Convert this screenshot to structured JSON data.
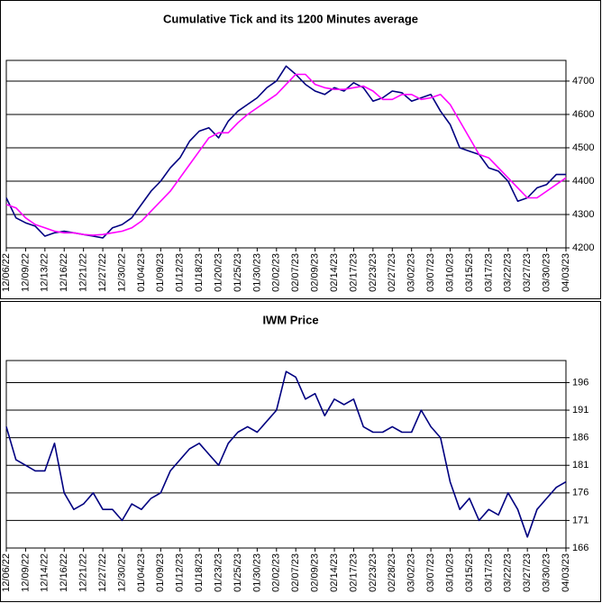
{
  "chart_data": [
    {
      "type": "line",
      "title": "Cumulative Tick and its 1200 Minutes average",
      "categories": [
        "12/06/22",
        null,
        "12/09/22",
        null,
        "12/13/22",
        null,
        "12/16/22",
        null,
        "12/21/22",
        null,
        "12/27/22",
        null,
        "12/30/22",
        null,
        "01/04/23",
        null,
        "01/09/23",
        null,
        "01/12/23",
        null,
        "01/18/23",
        null,
        "01/20/23",
        null,
        "01/25/23",
        null,
        "01/30/23",
        null,
        "02/02/23",
        null,
        "02/07/23",
        null,
        "02/09/23",
        null,
        "02/14/23",
        null,
        "02/17/23",
        null,
        "02/23/23",
        null,
        "02/27/23",
        null,
        "03/02/23",
        null,
        "03/07/23",
        null,
        "03/10/23",
        null,
        "03/15/23",
        null,
        "03/17/23",
        null,
        "03/22/23",
        null,
        "03/27/23",
        null,
        "03/30/23",
        null,
        "04/03/23"
      ],
      "series": [
        {
          "color": "#000080",
          "values": [
            4350,
            4290,
            4275,
            4265,
            4235,
            4245,
            4250,
            4245,
            4240,
            4235,
            4230,
            4260,
            4270,
            4290,
            4330,
            4370,
            4400,
            4440,
            4470,
            4520,
            4550,
            4560,
            4530,
            4580,
            4610,
            4630,
            4650,
            4680,
            4700,
            4745,
            4720,
            4690,
            4670,
            4660,
            4680,
            4670,
            4695,
            4680,
            4640,
            4650,
            4670,
            4665,
            4640,
            4650,
            4660,
            4610,
            4570,
            4500,
            4490,
            4480,
            4440,
            4430,
            4400,
            4340,
            4350,
            4380,
            4390,
            4420,
            4420
          ]
        },
        {
          "color": "#ff00ff",
          "values": [
            4330,
            4320,
            4290,
            4270,
            4260,
            4250,
            4245,
            4245,
            4240,
            4238,
            4240,
            4245,
            4250,
            4260,
            4280,
            4310,
            4340,
            4370,
            4410,
            4450,
            4490,
            4530,
            4545,
            4545,
            4575,
            4600,
            4620,
            4640,
            4660,
            4690,
            4720,
            4720,
            4690,
            4680,
            4675,
            4675,
            4680,
            4685,
            4670,
            4645,
            4645,
            4660,
            4660,
            4645,
            4650,
            4660,
            4630,
            4580,
            4530,
            4480,
            4470,
            4440,
            4410,
            4380,
            4350,
            4350,
            4370,
            4390,
            4410
          ]
        }
      ],
      "ylim": [
        4200,
        4762
      ],
      "yticks": [
        4200,
        4300,
        4400,
        4500,
        4600,
        4700
      ],
      "grid": true
    },
    {
      "type": "line",
      "title": "IWM Price",
      "categories": [
        "12/06/22",
        null,
        "12/09/22",
        null,
        "12/14/22",
        null,
        "12/16/22",
        null,
        "12/21/22",
        null,
        "12/27/22",
        null,
        "12/30/22",
        null,
        "01/04/23",
        null,
        "01/09/23",
        null,
        "01/12/23",
        null,
        "01/18/23",
        null,
        "01/23/23",
        null,
        "01/25/23",
        null,
        "01/30/23",
        null,
        "02/02/23",
        null,
        "02/07/23",
        null,
        "02/09/23",
        null,
        "02/14/23",
        null,
        "02/17/23",
        null,
        "02/23/23",
        null,
        "02/28/23",
        null,
        "03/02/23",
        null,
        "03/07/23",
        null,
        "03/10/23",
        null,
        "03/15/23",
        null,
        "03/17/23",
        null,
        "03/22/23",
        null,
        "03/27/23",
        null,
        "03/30/23",
        null,
        "04/03/23"
      ],
      "series": [
        {
          "color": "#000080",
          "values": [
            188,
            182,
            181,
            180,
            180,
            185,
            176,
            173,
            174,
            176,
            173,
            173,
            171,
            174,
            173,
            175,
            176,
            180,
            182,
            184,
            185,
            183,
            181,
            185,
            187,
            188,
            187,
            189,
            191,
            198,
            197,
            193,
            194,
            190,
            193,
            192,
            193,
            188,
            187,
            187,
            188,
            187,
            187,
            191,
            188,
            186,
            178,
            173,
            175,
            171,
            173,
            172,
            176,
            173,
            168,
            173,
            175,
            177,
            178
          ]
        }
      ],
      "ylim": [
        166,
        200
      ],
      "yticks": [
        166,
        171,
        176,
        181,
        186,
        191,
        196
      ],
      "grid": true
    }
  ]
}
